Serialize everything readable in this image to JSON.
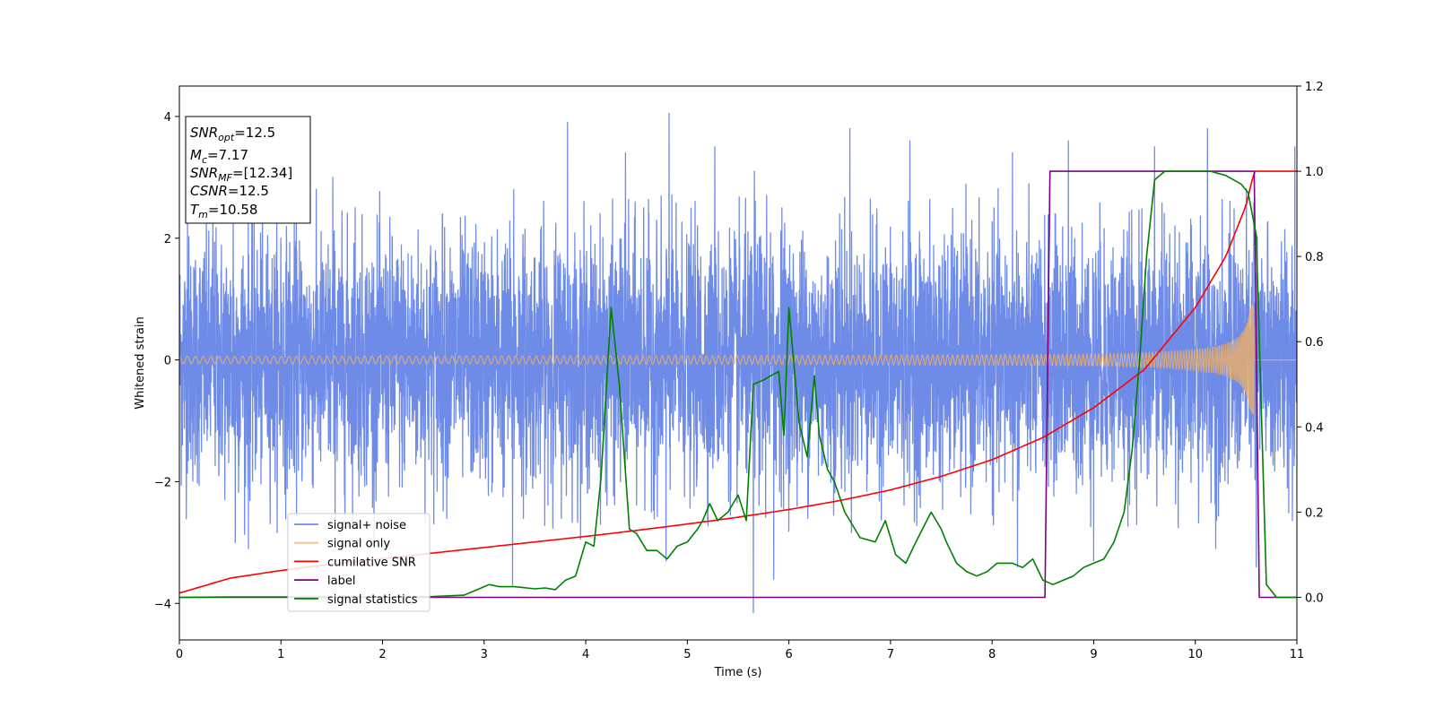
{
  "chart_data": {
    "type": "line",
    "xlabel": "Time (s)",
    "ylabel": "Whitened strain",
    "xlim": [
      0,
      11
    ],
    "ylim": [
      -4.6,
      4.5
    ],
    "y2lim": [
      -0.1,
      1.2
    ],
    "x_ticks": [
      0,
      1,
      2,
      3,
      4,
      5,
      6,
      7,
      8,
      9,
      10,
      11
    ],
    "y_ticks": [
      -4,
      -2,
      0,
      2,
      4
    ],
    "y2_ticks": [
      0.0,
      0.2,
      0.4,
      0.6,
      0.8,
      1.0,
      1.2
    ],
    "grid": false,
    "legend_position": "lower-left",
    "info_box": {
      "position": "top-left",
      "lines": [
        {
          "label": "SNR",
          "sub": "opt",
          "value": "=12.5"
        },
        {
          "label": "M",
          "sub": "c",
          "value": "=7.17"
        },
        {
          "label": "SNR",
          "sub": "MF",
          "value": "=[12.34]"
        },
        {
          "label": "CSNR",
          "sub": "",
          "value": "=12.5"
        },
        {
          "label": "T",
          "sub": "m",
          "value": "=10.58"
        }
      ]
    },
    "series": [
      {
        "name": "signal+ noise",
        "color": "#6f8be8",
        "axis": "left",
        "kind": "noise",
        "noise_std": 1.0,
        "noise_peaks": [
          [
            0.08,
            2.3
          ],
          [
            0.33,
            2.3
          ],
          [
            0.53,
            2.4
          ],
          [
            1.0,
            2.0
          ],
          [
            1.51,
            3.0
          ],
          [
            1.73,
            2.5
          ],
          [
            2.59,
            2.4
          ],
          [
            3.29,
            2.8
          ],
          [
            3.82,
            3.9
          ],
          [
            4.39,
            3.4
          ],
          [
            4.57,
            2.5
          ],
          [
            4.82,
            4.05
          ],
          [
            5.27,
            3.5
          ],
          [
            5.66,
            3.1
          ],
          [
            5.78,
            2.7
          ],
          [
            5.93,
            2.5
          ],
          [
            6.5,
            2.4
          ],
          [
            6.6,
            3.8
          ],
          [
            7.19,
            3.6
          ],
          [
            8.2,
            3.4
          ],
          [
            8.75,
            3.6
          ],
          [
            9.6,
            3.5
          ],
          [
            9.8,
            2.2
          ],
          [
            10.12,
            3.8
          ],
          [
            10.98,
            3.5
          ]
        ],
        "noise_troughs": [
          [
            0.55,
            -3.0
          ],
          [
            0.68,
            -3.1
          ],
          [
            3.28,
            -3.7
          ],
          [
            4.79,
            -3.3
          ],
          [
            5.65,
            -4.15
          ],
          [
            5.85,
            -3.6
          ],
          [
            8.25,
            -3.4
          ],
          [
            9.0,
            -3.3
          ],
          [
            10.2,
            -3.1
          ],
          [
            10.6,
            -3.4
          ]
        ]
      },
      {
        "name": "signal only",
        "color": "#f5b25e",
        "axis": "left",
        "kind": "chirp",
        "t_merge": 10.58,
        "amp_start": 0.06,
        "amp_end": 0.9
      },
      {
        "name": "cumilative SNR",
        "color": "#ff0000",
        "axis": "right",
        "kind": "line",
        "x": [
          0,
          0.5,
          1,
          1.5,
          2,
          2.5,
          3,
          3.5,
          4,
          4.5,
          5,
          5.5,
          6,
          6.5,
          7,
          7.5,
          8,
          8.5,
          9,
          9.5,
          10,
          10.3,
          10.5,
          10.58,
          11
        ],
        "y": [
          0.01,
          0.045,
          0.063,
          0.078,
          0.091,
          0.104,
          0.117,
          0.13,
          0.143,
          0.157,
          0.172,
          0.188,
          0.206,
          0.227,
          0.252,
          0.284,
          0.323,
          0.375,
          0.445,
          0.535,
          0.68,
          0.8,
          0.92,
          1.0,
          1.0
        ]
      },
      {
        "name": "label",
        "color": "#800080",
        "axis": "right",
        "kind": "line",
        "x": [
          0,
          8.52,
          8.57,
          10.58,
          10.63,
          11
        ],
        "y": [
          0.0,
          0.0,
          1.0,
          1.0,
          0.0,
          0.0
        ]
      },
      {
        "name": "signal statistics",
        "color": "#008000",
        "axis": "right",
        "kind": "line",
        "x": [
          0,
          0.5,
          1,
          1.5,
          2,
          2.5,
          2.8,
          2.95,
          3.05,
          3.15,
          3.3,
          3.5,
          3.6,
          3.7,
          3.8,
          3.9,
          4.0,
          4.08,
          4.15,
          4.25,
          4.33,
          4.43,
          4.5,
          4.6,
          4.7,
          4.8,
          4.9,
          5.0,
          5.1,
          5.15,
          5.22,
          5.3,
          5.4,
          5.5,
          5.58,
          5.65,
          5.75,
          5.82,
          5.9,
          5.95,
          6.0,
          6.1,
          6.18,
          6.25,
          6.3,
          6.38,
          6.45,
          6.55,
          6.7,
          6.85,
          6.95,
          7.05,
          7.15,
          7.25,
          7.4,
          7.5,
          7.55,
          7.65,
          7.75,
          7.85,
          7.95,
          8.05,
          8.2,
          8.3,
          8.4,
          8.5,
          8.6,
          8.7,
          8.8,
          8.9,
          9.0,
          9.1,
          9.2,
          9.3,
          9.38,
          9.45,
          9.52,
          9.6,
          9.7,
          9.85,
          10.0,
          10.15,
          10.3,
          10.45,
          10.52,
          10.6,
          10.7,
          10.8,
          11
        ],
        "y": [
          0.0,
          0.001,
          0.001,
          0.001,
          0.001,
          0.002,
          0.005,
          0.02,
          0.03,
          0.025,
          0.025,
          0.02,
          0.022,
          0.018,
          0.04,
          0.05,
          0.13,
          0.12,
          0.28,
          0.68,
          0.5,
          0.16,
          0.15,
          0.11,
          0.11,
          0.09,
          0.12,
          0.13,
          0.16,
          0.18,
          0.22,
          0.18,
          0.2,
          0.24,
          0.18,
          0.5,
          0.51,
          0.52,
          0.53,
          0.38,
          0.68,
          0.41,
          0.33,
          0.52,
          0.38,
          0.3,
          0.27,
          0.2,
          0.14,
          0.13,
          0.18,
          0.1,
          0.08,
          0.13,
          0.2,
          0.16,
          0.13,
          0.08,
          0.06,
          0.05,
          0.06,
          0.08,
          0.08,
          0.07,
          0.09,
          0.04,
          0.03,
          0.04,
          0.05,
          0.07,
          0.08,
          0.09,
          0.13,
          0.2,
          0.35,
          0.55,
          0.8,
          0.98,
          1.0,
          1.0,
          1.0,
          1.0,
          0.99,
          0.97,
          0.95,
          0.85,
          0.03,
          0.0,
          0.0
        ]
      }
    ]
  }
}
